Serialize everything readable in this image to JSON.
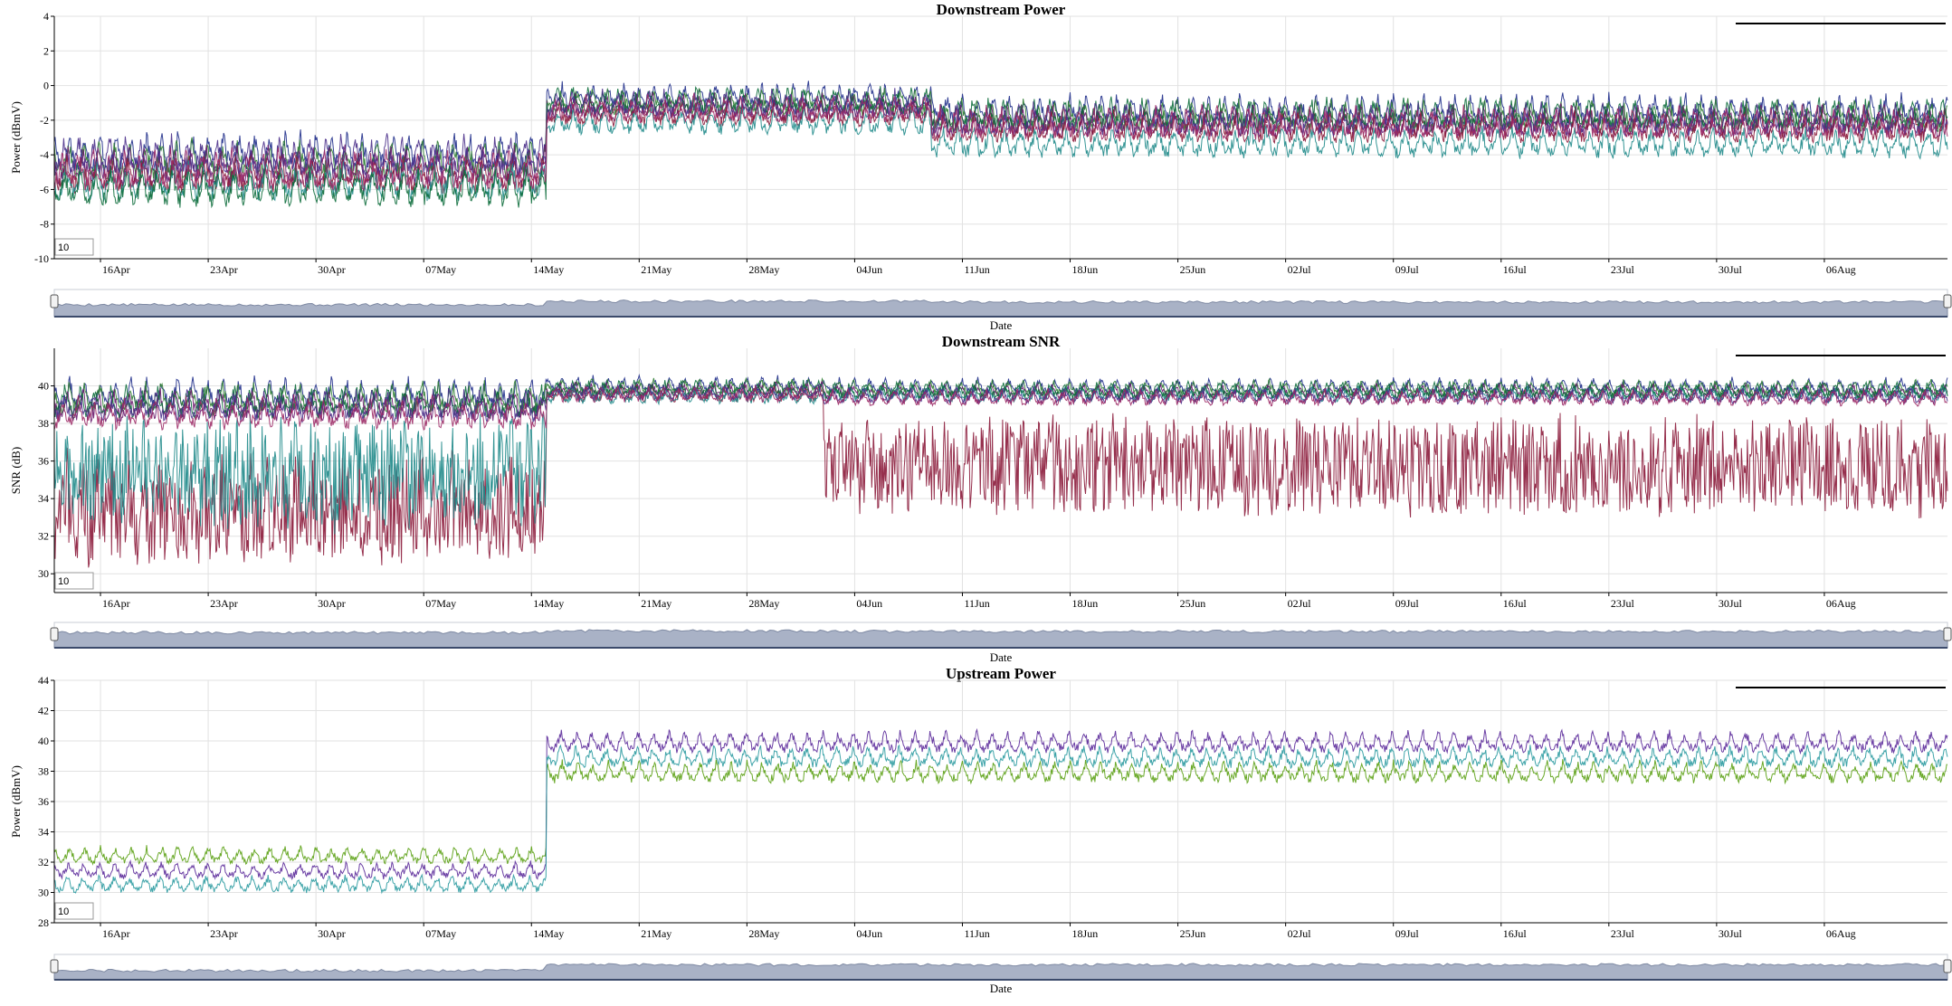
{
  "chart_data": [
    {
      "type": "line",
      "title": "Downstream Power",
      "ylabel": "Power (dBmV)",
      "xlabel": "Date",
      "ylim": [
        -10,
        4
      ],
      "yticks": [
        -10,
        -8,
        -6,
        -4,
        -2,
        0,
        2,
        4
      ],
      "x_range": [
        "2018-04-13",
        "2018-08-14"
      ],
      "xtick_labels": [
        "16Apr",
        "23Apr",
        "30Apr",
        "07May",
        "14May",
        "21May",
        "28May",
        "04Jun",
        "11Jun",
        "18Jun",
        "25Jun",
        "02Jul",
        "09Jul",
        "16Jul",
        "23Jul",
        "30Jul",
        "06Aug"
      ],
      "grid": true,
      "roll_period": "10",
      "range_selector": true,
      "series_colors": [
        "#1f2d8a",
        "#2e7d32",
        "#6a1b6e",
        "#8b1a3a",
        "#1f8a8a",
        "#0b6b3a",
        "#4a2f8a",
        "#9c2a66"
      ],
      "segments": [
        {
          "start": "2018-04-13",
          "end": "2018-05-15",
          "levels": [
            -3.8,
            -4.2,
            -4.6,
            -5.0,
            -5.4,
            -5.8,
            -4.0,
            -4.8
          ],
          "swing": 1.6
        },
        {
          "start": "2018-05-15",
          "end": "2018-06-09",
          "levels": [
            -0.6,
            -0.9,
            -1.2,
            -1.5,
            -2.0,
            -0.8,
            -1.0,
            -1.3
          ],
          "swing": 1.1
        },
        {
          "start": "2018-06-09",
          "end": "2018-08-14",
          "levels": [
            -1.4,
            -1.7,
            -2.0,
            -2.3,
            -3.2,
            -1.6,
            -1.9,
            -2.1
          ],
          "swing": 1.3
        }
      ]
    },
    {
      "type": "line",
      "title": "Downstream SNR",
      "ylabel": "SNR (dB)",
      "xlabel": "Date",
      "ylim": [
        29,
        42
      ],
      "yticks": [
        30,
        32,
        34,
        36,
        38,
        40
      ],
      "x_range": [
        "2018-04-13",
        "2018-08-14"
      ],
      "xtick_labels": [
        "16Apr",
        "23Apr",
        "30Apr",
        "07May",
        "14May",
        "21May",
        "28May",
        "04Jun",
        "11Jun",
        "18Jun",
        "25Jun",
        "02Jul",
        "09Jul",
        "16Jul",
        "23Jul",
        "30Jul",
        "06Aug"
      ],
      "grid": true,
      "roll_period": "10",
      "range_selector": true,
      "series_colors": [
        "#1f2d8a",
        "#2e7d32",
        "#6a1b6e",
        "#8b1a3a",
        "#1f8a8a",
        "#0b6b3a",
        "#4a2f8a",
        "#9c2a66"
      ],
      "segments": [
        {
          "start": "2018-04-13",
          "end": "2018-05-15",
          "levels": [
            39.6,
            39.4,
            39.0,
            33.5,
            35.5,
            39.2,
            39.0,
            38.6
          ],
          "swing": 1.2
        },
        {
          "start": "2018-05-15",
          "end": "2018-06-02",
          "levels": [
            40.1,
            40.0,
            39.8,
            39.6,
            39.5,
            39.9,
            39.7,
            39.6
          ],
          "swing": 0.6
        },
        {
          "start": "2018-06-02",
          "end": "2018-08-14",
          "levels": [
            40.0,
            39.9,
            39.7,
            35.8,
            39.6,
            39.8,
            39.5,
            39.4
          ],
          "swing": 0.6
        }
      ]
    },
    {
      "type": "line",
      "title": "Upstream Power",
      "ylabel": "Power (dBmV)",
      "xlabel": "Date",
      "ylim": [
        28,
        44
      ],
      "yticks": [
        28,
        30,
        32,
        34,
        36,
        38,
        40,
        42,
        44
      ],
      "x_range": [
        "2018-04-13",
        "2018-08-14"
      ],
      "xtick_labels": [
        "16Apr",
        "23Apr",
        "30Apr",
        "07May",
        "14May",
        "21May",
        "28May",
        "04Jun",
        "11Jun",
        "18Jun",
        "25Jun",
        "02Jul",
        "09Jul",
        "16Jul",
        "23Jul",
        "30Jul",
        "06Aug"
      ],
      "grid": true,
      "roll_period": "10",
      "range_selector": true,
      "series_colors": [
        "#5aa012",
        "#5b2a9a",
        "#2a9aa0"
      ],
      "segments": [
        {
          "start": "2018-04-13",
          "end": "2018-05-15",
          "levels": [
            32.5,
            31.5,
            30.6
          ],
          "swing": 0.8
        },
        {
          "start": "2018-05-15",
          "end": "2018-08-14",
          "levels": [
            38.0,
            40.0,
            39.0
          ],
          "swing": 1.0
        }
      ]
    }
  ]
}
